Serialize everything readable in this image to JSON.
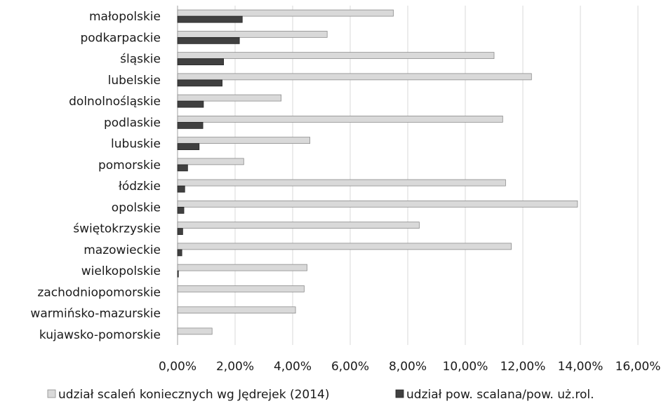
{
  "chart_data": {
    "type": "bar",
    "orientation": "horizontal",
    "categories": [
      "małopolskie",
      "podkarpackie",
      "śląskie",
      "lubelskie",
      "dolnolnośląskie",
      "podlaskie",
      "lubuskie",
      "pomorskie",
      "łódzkie",
      "opolskie",
      "świętokrzyskie",
      "mazowieckie",
      "wielkopolskie",
      "zachodniopomorskie",
      "warmińsko-mazurskie",
      "kujawsko-pomorskie"
    ],
    "series": [
      {
        "name": "udział scaleń koniecznych wg Jędrejek (2014)",
        "color": "#d9d9d9",
        "stroke": "#8c8c8c",
        "values": [
          7.5,
          5.2,
          11.0,
          12.3,
          3.6,
          11.3,
          4.6,
          2.3,
          11.4,
          13.9,
          8.4,
          11.6,
          4.5,
          4.4,
          4.1,
          1.2
        ]
      },
      {
        "name": "udział pow. scalana/pow. uż.rol.",
        "color": "#404040",
        "stroke": "#262626",
        "values": [
          2.25,
          2.15,
          1.6,
          1.55,
          0.9,
          0.88,
          0.75,
          0.35,
          0.25,
          0.22,
          0.18,
          0.15,
          0.03,
          0.0,
          0.0,
          0.0
        ]
      }
    ],
    "x_ticks": [
      "0,00%",
      "2,00%",
      "4,00%",
      "6,00%",
      "8,00%",
      "10,00%",
      "12,00%",
      "14,00%",
      "16,00%"
    ],
    "xlim": [
      0,
      16
    ],
    "grid": true,
    "legend_position": "bottom"
  }
}
